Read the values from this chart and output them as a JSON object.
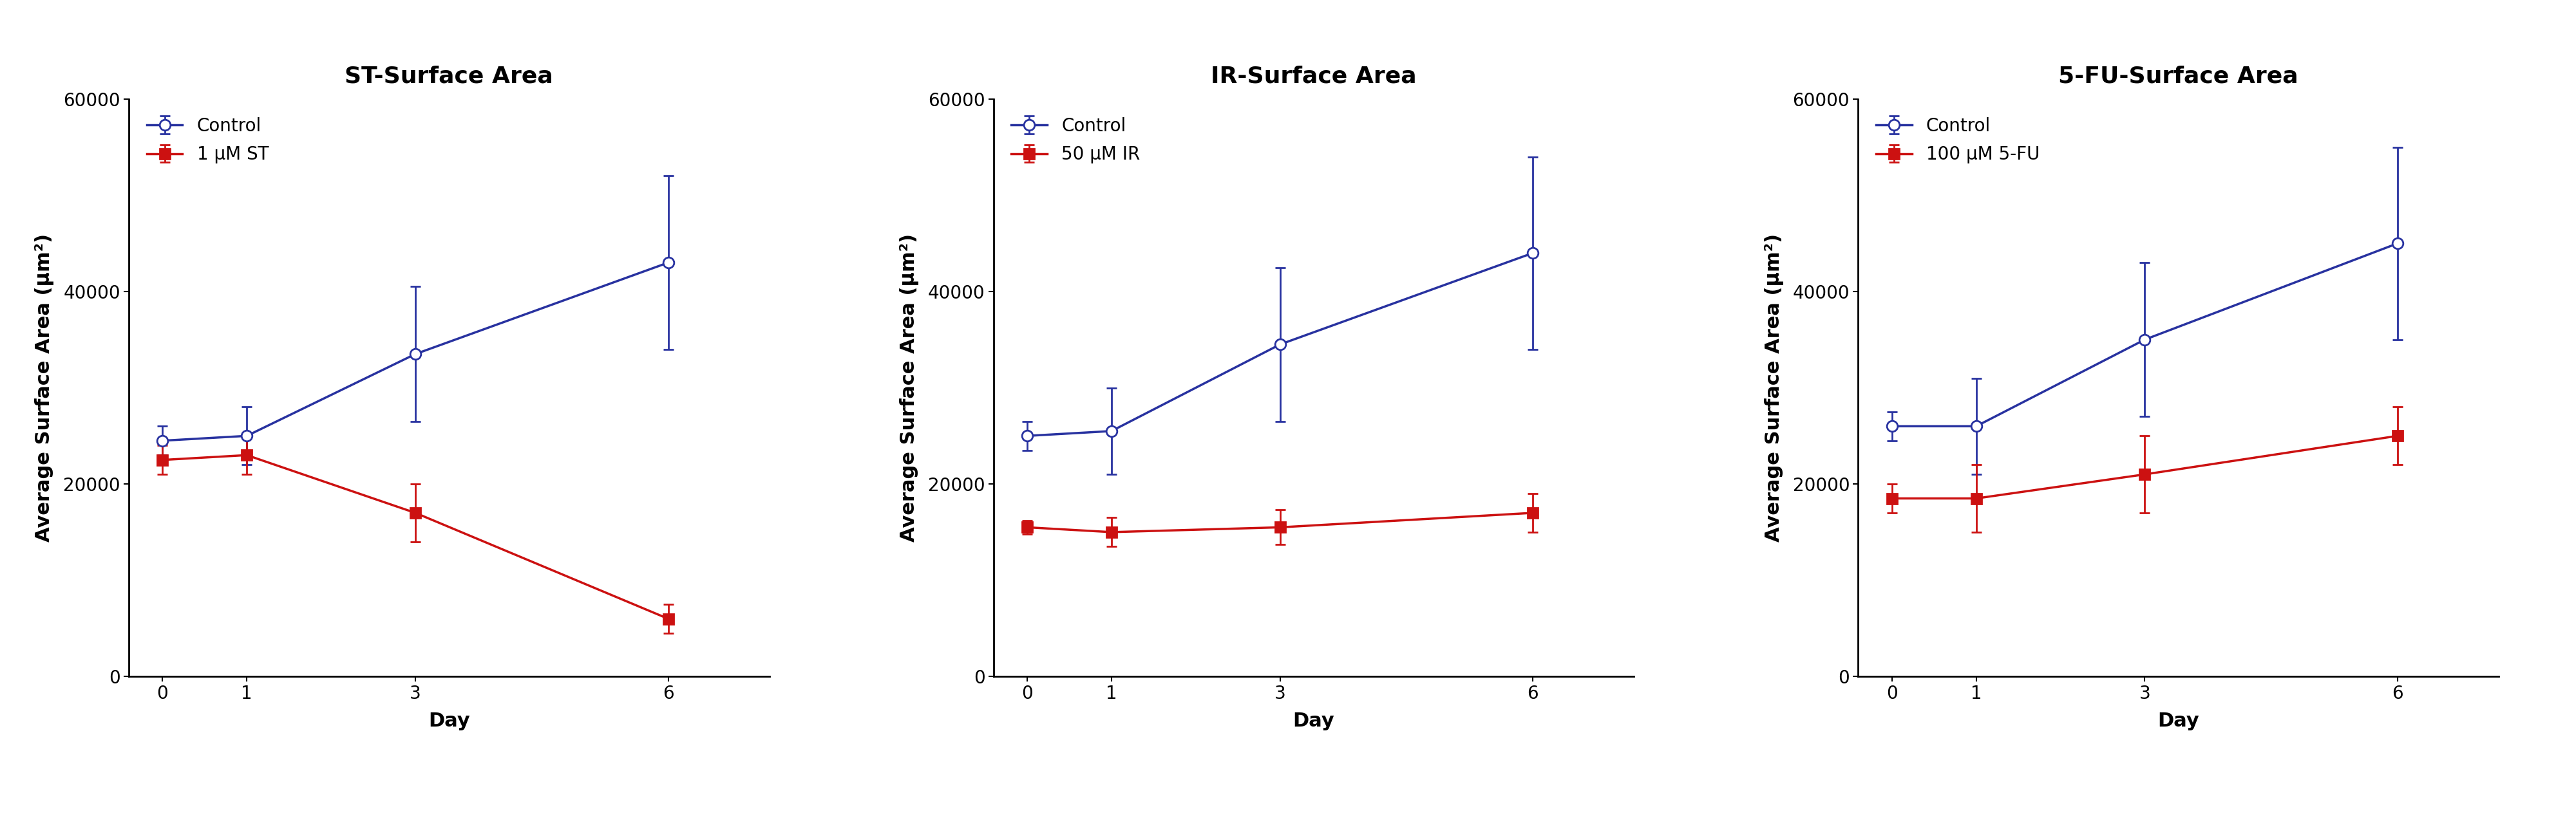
{
  "panels": [
    {
      "title": "ST-Surface Area",
      "xlabel": "Day",
      "ylabel": "Average Surface Area (μm²)",
      "xlim": [
        -0.4,
        7.2
      ],
      "ylim": [
        0,
        60000
      ],
      "yticks": [
        0,
        20000,
        40000,
        60000
      ],
      "xticks": [
        0,
        1,
        3,
        6
      ],
      "days": [
        0,
        1,
        3,
        6
      ],
      "control": {
        "mean": [
          24500,
          25000,
          33500,
          43000
        ],
        "err": [
          1500,
          3000,
          7000,
          9000
        ],
        "label": "Control",
        "color": "#2832a0",
        "marker": "o",
        "markerfacecolor": "white",
        "markersize": 12,
        "linewidth": 2.5
      },
      "treatment": {
        "mean": [
          22500,
          23000,
          17000,
          6000
        ],
        "err": [
          1500,
          2000,
          3000,
          1500
        ],
        "label": "1 μM ST",
        "color": "#cc1111",
        "marker": "s",
        "markerfacecolor": "#cc1111",
        "markersize": 11,
        "linewidth": 2.5
      }
    },
    {
      "title": "IR-Surface Area",
      "xlabel": "Day",
      "ylabel": "Average Surface Area (μm²)",
      "xlim": [
        -0.4,
        7.2
      ],
      "ylim": [
        0,
        60000
      ],
      "yticks": [
        0,
        20000,
        40000,
        60000
      ],
      "xticks": [
        0,
        1,
        3,
        6
      ],
      "days": [
        0,
        1,
        3,
        6
      ],
      "control": {
        "mean": [
          25000,
          25500,
          34500,
          44000
        ],
        "err": [
          1500,
          4500,
          8000,
          10000
        ],
        "label": "Control",
        "color": "#2832a0",
        "marker": "o",
        "markerfacecolor": "white",
        "markersize": 12,
        "linewidth": 2.5
      },
      "treatment": {
        "mean": [
          15500,
          15000,
          15500,
          17000
        ],
        "err": [
          700,
          1500,
          1800,
          2000
        ],
        "label": "50 μM IR",
        "color": "#cc1111",
        "marker": "s",
        "markerfacecolor": "#cc1111",
        "markersize": 11,
        "linewidth": 2.5
      }
    },
    {
      "title": "5-FU-Surface Area",
      "xlabel": "Day",
      "ylabel": "Average Surface Area (μm²)",
      "xlim": [
        -0.4,
        7.2
      ],
      "ylim": [
        0,
        60000
      ],
      "yticks": [
        0,
        20000,
        40000,
        60000
      ],
      "xticks": [
        0,
        1,
        3,
        6
      ],
      "days": [
        0,
        1,
        3,
        6
      ],
      "control": {
        "mean": [
          26000,
          26000,
          35000,
          45000
        ],
        "err": [
          1500,
          5000,
          8000,
          10000
        ],
        "label": "Control",
        "color": "#2832a0",
        "marker": "o",
        "markerfacecolor": "white",
        "markersize": 12,
        "linewidth": 2.5
      },
      "treatment": {
        "mean": [
          18500,
          18500,
          21000,
          25000
        ],
        "err": [
          1500,
          3500,
          4000,
          3000
        ],
        "label": "100 μM 5-FU",
        "color": "#cc1111",
        "marker": "s",
        "markerfacecolor": "#cc1111",
        "markersize": 11,
        "linewidth": 2.5
      }
    }
  ],
  "figure_bg": "#ffffff",
  "title_fontsize": 26,
  "label_fontsize": 22,
  "tick_fontsize": 20,
  "legend_fontsize": 20
}
